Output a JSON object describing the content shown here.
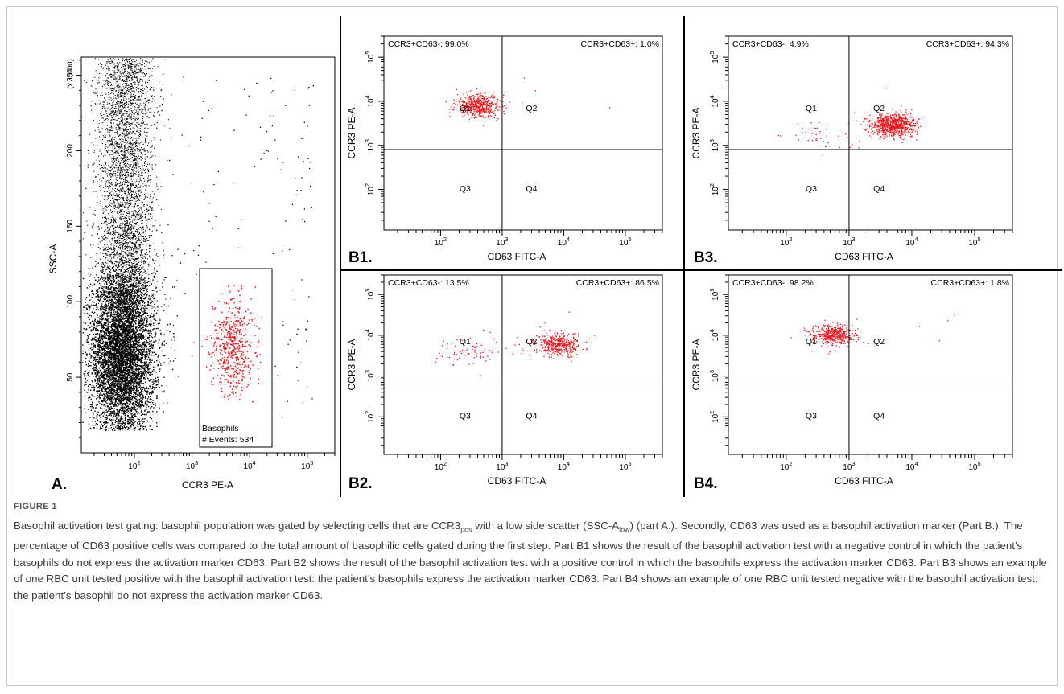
{
  "figure": {
    "label": "FIGURE 1",
    "caption_parts": [
      "Basophil activation test gating: basophil population was gated by selecting cells that are CCR3",
      "pos",
      " with a low side scatter (SSC-A",
      "low",
      ") (part A.). Secondly, CD63 was used as a basophil activation marker (Part B.). The percentage of CD63 positive cells was compared to the total amount of basophilic cells gated during the first step. Part B1 shows the result of the basophil activation test with a negative control in which the patient’s basophils do not express the activation marker CD63. Part B2 shows the result of the basophil activation test with a positive control in which the basophils express the activation marker CD63. Part B3 shows an example of one RBC unit tested positive with the basophil activation test: the patient’s basophils express the activation marker CD63. Part B4 shows an example of one RBC unit tested negative with the basophil activation test: the patient’s basophil do not express the activation marker CD63."
    ]
  },
  "colors": {
    "gated": "#e8161c",
    "ungated": "#000000",
    "axis": "#000000"
  },
  "chart_data": [
    {
      "panel": "A.",
      "type": "scatter",
      "xlabel": "CCR3 PE-A",
      "ylabel": "SSC-A",
      "y_multiplier_label": "(x 1,000)",
      "x_scale": "log",
      "x_ticks": [
        "10^2",
        "10^3",
        "10^4",
        "10^5"
      ],
      "y_ticks": [
        "50",
        "100",
        "150",
        "200",
        "250"
      ],
      "ylim": [
        0,
        262
      ],
      "gate": {
        "name": "Basophils",
        "events_label": "# Events: 534",
        "x_range": [
          1000,
          30000
        ],
        "y_range": [
          22,
          120
        ]
      },
      "populations": [
        {
          "name": "",
          "color": "#000000",
          "x_center": 60,
          "y_center": 60,
          "count": 9000
        },
        {
          "name": "Basophils",
          "color": "#e8161c",
          "x_center": 5000,
          "y_center": 70,
          "count": 534
        }
      ]
    },
    {
      "panel": "B1.",
      "type": "scatter",
      "xlabel": "CD63 FITC-A",
      "ylabel": "CCR3 PE-A",
      "x_scale": "log",
      "y_scale": "log",
      "x_ticks": [
        "10^2",
        "10^3",
        "10^4",
        "10^5"
      ],
      "y_ticks": [
        "10^2",
        "10^3",
        "10^4",
        "10^5"
      ],
      "quadrant_labels": [
        "Q1",
        "Q2",
        "Q3",
        "Q4"
      ],
      "quadrant_stats": {
        "left": "CCR3+CD63-: 99.0%",
        "right": "CCR3+CD63+: 1.0%"
      },
      "gate_x": 1000,
      "gate_y": 800,
      "clusters": [
        {
          "x_center": 400,
          "y_center": 8000,
          "count": 520
        }
      ]
    },
    {
      "panel": "B2.",
      "type": "scatter",
      "xlabel": "CD63 FITC-A",
      "ylabel": "CCR3 PE-A",
      "x_scale": "log",
      "y_scale": "log",
      "x_ticks": [
        "10^2",
        "10^3",
        "10^4",
        "10^5"
      ],
      "y_ticks": [
        "10^2",
        "10^3",
        "10^4",
        "10^5"
      ],
      "quadrant_labels": [
        "Q1",
        "Q2",
        "Q3",
        "Q4"
      ],
      "quadrant_stats": {
        "left": "CCR3+CD63-: 13.5%",
        "right": "CCR3+CD63+: 86.5%"
      },
      "gate_x": 1000,
      "gate_y": 800,
      "clusters": [
        {
          "x_center": 8000,
          "y_center": 6000,
          "count": 420
        },
        {
          "x_center": 300,
          "y_center": 4000,
          "count": 80
        }
      ]
    },
    {
      "panel": "B3.",
      "type": "scatter",
      "xlabel": "CD63 FITC-A",
      "ylabel": "CCR3 PE-A",
      "x_scale": "log",
      "y_scale": "log",
      "x_ticks": [
        "10^2",
        "10^3",
        "10^4",
        "10^5"
      ],
      "y_ticks": [
        "10^2",
        "10^3",
        "10^4",
        "10^5"
      ],
      "quadrant_labels": [
        "Q1",
        "Q2",
        "Q3",
        "Q4"
      ],
      "quadrant_stats": {
        "left": "CCR3+CD63-: 4.9%",
        "right": "CCR3+CD63+: 94.3%"
      },
      "gate_x": 1000,
      "gate_y": 800,
      "clusters": [
        {
          "x_center": 5000,
          "y_center": 3000,
          "count": 820
        },
        {
          "x_center": 400,
          "y_center": 1500,
          "count": 50
        }
      ]
    },
    {
      "panel": "B4.",
      "type": "scatter",
      "xlabel": "CD63 FITC-A",
      "ylabel": "CCR3 PE-A",
      "x_scale": "log",
      "y_scale": "log",
      "x_ticks": [
        "10^2",
        "10^3",
        "10^4",
        "10^5"
      ],
      "y_ticks": [
        "10^2",
        "10^3",
        "10^4",
        "10^5"
      ],
      "quadrant_labels": [
        "Q1",
        "Q2",
        "Q3",
        "Q4"
      ],
      "quadrant_stats": {
        "left": "CCR3+CD63-: 98.2%",
        "right": "CCR3+CD63+: 1.8%"
      },
      "gate_x": 1000,
      "gate_y": 800,
      "clusters": [
        {
          "x_center": 550,
          "y_center": 10000,
          "count": 480
        }
      ]
    }
  ]
}
